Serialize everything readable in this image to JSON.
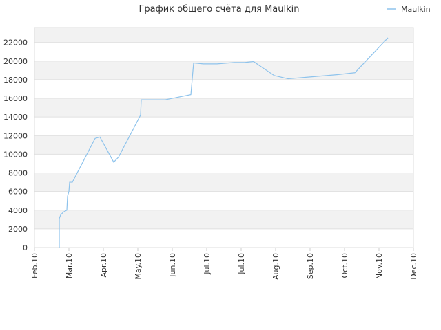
{
  "chart_data": {
    "type": "line",
    "title": "График общего счёта для Maulkin",
    "x": [
      0.72,
      0.72,
      0.76,
      0.84,
      0.94,
      0.96,
      1.0,
      1.02,
      1.1,
      1.76,
      1.9,
      2.3,
      2.44,
      3.08,
      3.1,
      3.8,
      4.54,
      4.62,
      4.9,
      5.3,
      5.8,
      6.1,
      6.36,
      6.96,
      7.36,
      8.0,
      8.8,
      9.3,
      10.26
    ],
    "series": [
      {
        "name": "Maulkin",
        "color": "#8ec3ec",
        "values": [
          0,
          3100,
          3500,
          3800,
          4000,
          5500,
          6000,
          7000,
          7000,
          11700,
          11850,
          9150,
          9700,
          14200,
          15850,
          15850,
          16400,
          19800,
          19700,
          19700,
          19850,
          19850,
          19950,
          18450,
          18100,
          18300,
          18550,
          18750,
          22500
        ]
      }
    ],
    "xlim": [
      0,
      11
    ],
    "xticks": [
      {
        "value": 0,
        "label": "Feb.10"
      },
      {
        "value": 1,
        "label": "Mar.10"
      },
      {
        "value": 2,
        "label": "Apr.10"
      },
      {
        "value": 3,
        "label": "May.10"
      },
      {
        "value": 4,
        "label": "Jun.10"
      },
      {
        "value": 5,
        "label": "Jul.10"
      },
      {
        "value": 6,
        "label": "Jul.10"
      },
      {
        "value": 7,
        "label": "Aug.10"
      },
      {
        "value": 8,
        "label": "Sep.10"
      },
      {
        "value": 9,
        "label": "Oct.10"
      },
      {
        "value": 10,
        "label": "Nov.10"
      },
      {
        "value": 11,
        "label": "Dec.10"
      }
    ],
    "ylim": [
      0,
      23600
    ],
    "yticks": [
      0,
      2000,
      4000,
      6000,
      8000,
      10000,
      12000,
      14000,
      16000,
      18000,
      20000,
      22000
    ],
    "grid": true,
    "legend": "top-right"
  }
}
